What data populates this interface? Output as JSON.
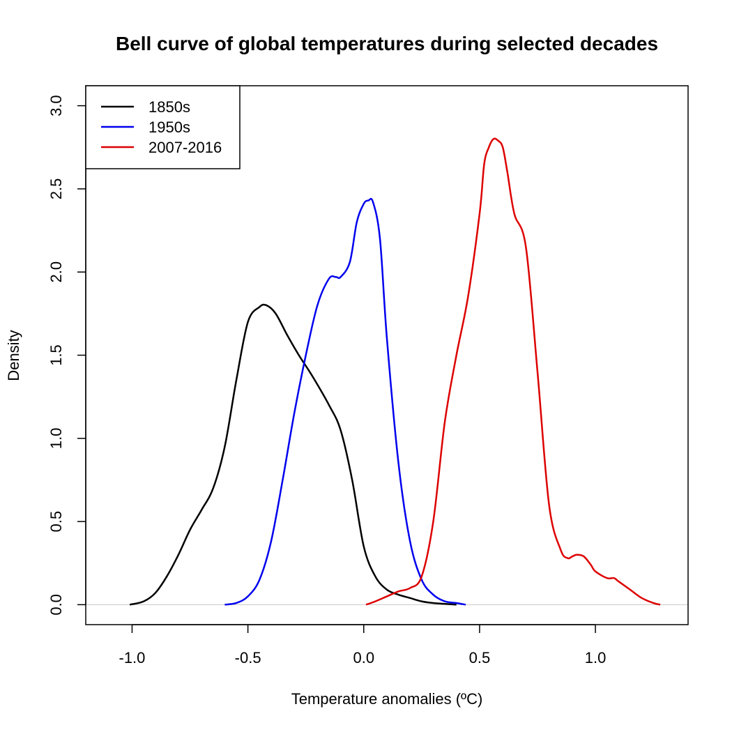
{
  "chart_data": {
    "type": "line",
    "title": "Bell curve of global temperatures during selected decades",
    "xlabel": "Temperature anomalies (ºC)",
    "ylabel": "Density",
    "xlim": [
      -1.2,
      1.4
    ],
    "ylim": [
      -0.12,
      3.12
    ],
    "x_ticks": [
      -1.0,
      -0.5,
      0.0,
      0.5,
      1.0
    ],
    "x_tick_labels": [
      "-1.0",
      "-0.5",
      "0.0",
      "0.5",
      "1.0"
    ],
    "y_ticks": [
      0.0,
      0.5,
      1.0,
      1.5,
      2.0,
      2.5,
      3.0
    ],
    "y_tick_labels": [
      "0.0",
      "0.5",
      "1.0",
      "1.5",
      "2.0",
      "2.5",
      "3.0"
    ],
    "baseline_y": 0.0,
    "legend_position": "top-left",
    "series": [
      {
        "name": "1850s",
        "color": "#000000",
        "x": [
          -1.01,
          -0.95,
          -0.9,
          -0.85,
          -0.8,
          -0.75,
          -0.7,
          -0.65,
          -0.6,
          -0.55,
          -0.5,
          -0.45,
          -0.42,
          -0.38,
          -0.33,
          -0.28,
          -0.22,
          -0.15,
          -0.1,
          -0.05,
          0.0,
          0.05,
          0.1,
          0.15,
          0.2,
          0.25,
          0.3,
          0.4
        ],
        "y": [
          0.0,
          0.02,
          0.07,
          0.17,
          0.3,
          0.45,
          0.57,
          0.7,
          0.95,
          1.35,
          1.7,
          1.79,
          1.8,
          1.75,
          1.62,
          1.5,
          1.37,
          1.2,
          1.05,
          0.75,
          0.35,
          0.17,
          0.09,
          0.06,
          0.04,
          0.02,
          0.01,
          0.0
        ]
      },
      {
        "name": "1950s",
        "color": "#0000ee",
        "x": [
          -0.6,
          -0.55,
          -0.5,
          -0.45,
          -0.4,
          -0.35,
          -0.3,
          -0.25,
          -0.2,
          -0.15,
          -0.12,
          -0.1,
          -0.06,
          -0.03,
          0.0,
          0.02,
          0.04,
          0.07,
          0.1,
          0.15,
          0.2,
          0.25,
          0.3,
          0.35,
          0.4,
          0.44
        ],
        "y": [
          0.0,
          0.01,
          0.05,
          0.15,
          0.38,
          0.75,
          1.15,
          1.5,
          1.8,
          1.96,
          1.97,
          1.97,
          2.06,
          2.3,
          2.41,
          2.43,
          2.42,
          2.2,
          1.6,
          0.85,
          0.38,
          0.15,
          0.06,
          0.02,
          0.01,
          0.0
        ]
      },
      {
        "name": "2007-2016",
        "color": "#dd0000",
        "x": [
          0.01,
          0.05,
          0.1,
          0.15,
          0.2,
          0.25,
          0.3,
          0.35,
          0.4,
          0.45,
          0.5,
          0.52,
          0.54,
          0.56,
          0.58,
          0.6,
          0.62,
          0.65,
          0.7,
          0.75,
          0.8,
          0.85,
          0.88,
          0.9,
          0.92,
          0.95,
          0.98,
          1.0,
          1.05,
          1.08,
          1.1,
          1.15,
          1.2,
          1.25,
          1.28
        ],
        "y": [
          0.0,
          0.02,
          0.05,
          0.08,
          0.1,
          0.17,
          0.5,
          1.1,
          1.5,
          1.85,
          2.35,
          2.65,
          2.75,
          2.8,
          2.79,
          2.75,
          2.6,
          2.35,
          2.15,
          1.4,
          0.6,
          0.33,
          0.28,
          0.29,
          0.3,
          0.29,
          0.24,
          0.2,
          0.16,
          0.16,
          0.14,
          0.09,
          0.04,
          0.01,
          0.0
        ]
      }
    ]
  }
}
